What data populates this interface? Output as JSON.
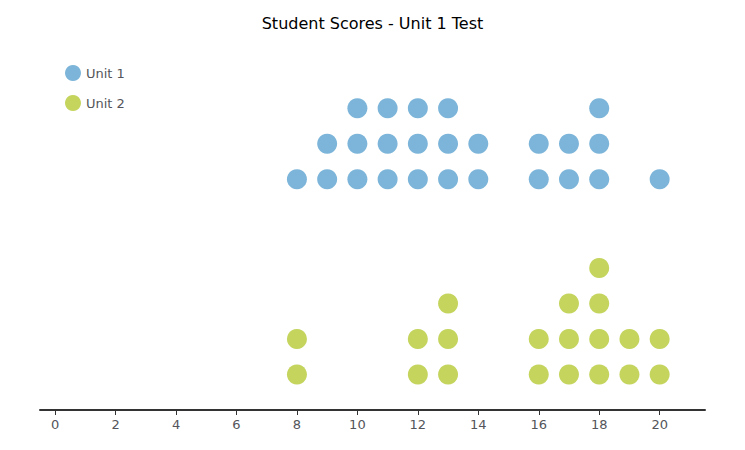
{
  "chart_data": {
    "type": "dot_plot",
    "title": "Student Scores - Unit 1 Test",
    "series": [
      {
        "name": "Unit 1",
        "color": "#5BA3D0",
        "x": [
          8,
          9,
          10,
          11,
          12,
          13,
          14,
          16,
          17,
          18,
          20
        ],
        "values": [
          1,
          2,
          3,
          3,
          3,
          3,
          2,
          2,
          2,
          3,
          1
        ]
      },
      {
        "name": "Unit 2",
        "color": "#B5C935",
        "x": [
          8,
          12,
          13,
          16,
          17,
          18,
          19,
          20
        ],
        "values": [
          2,
          2,
          3,
          2,
          3,
          4,
          2,
          2
        ]
      }
    ],
    "xlim": [
      -0.5,
      21.5
    ],
    "xticks": [
      0,
      2,
      4,
      6,
      8,
      10,
      12,
      14,
      16,
      18,
      20
    ],
    "tick_labels": "x",
    "legend": "upper left",
    "grid": false
  }
}
